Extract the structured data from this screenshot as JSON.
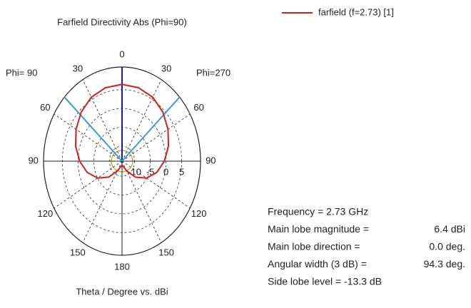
{
  "chart_data": {
    "type": "polar",
    "title": "Farfield Directivity Abs (Phi=90)",
    "x_label": "Theta / Degree vs. dBi",
    "left_label": "Phi= 90",
    "right_label": "Phi=270",
    "rlim": [
      -14,
      11
    ],
    "rticks": [
      -10,
      -5,
      0,
      5
    ],
    "theta_ticks": [
      0,
      30,
      60,
      90,
      120,
      150,
      180
    ],
    "series": [
      {
        "name": "farfield (f=2.73) [1]",
        "color": "#cc2222",
        "x": [
          -180,
          -165,
          -150,
          -135,
          -120,
          -105,
          -90,
          -75,
          -60,
          -45,
          -30,
          -15,
          0,
          15,
          30,
          45,
          60,
          75,
          90,
          105,
          120,
          135,
          150,
          165,
          180
        ],
        "values": [
          -13,
          -12.5,
          -11,
          -8,
          -5,
          -2.5,
          -0.5,
          1.3,
          2.9,
          4.4,
          5.6,
          6.2,
          6.4,
          6.2,
          5.6,
          4.4,
          2.9,
          1.3,
          -0.5,
          -2.5,
          -5,
          -8,
          -11,
          -12.5,
          -13
        ]
      }
    ],
    "main_lobe_direction": 0,
    "beam_edges": [
      -47.15,
      47.15
    ],
    "info": [
      {
        "label": "Frequency = 2.73 GHz"
      },
      {
        "label": "Main lobe magnitude =",
        "value": "6.4 dBi"
      },
      {
        "label": "Main lobe direction =",
        "value": "0.0 deg."
      },
      {
        "label": "Angular width (3 dB) =",
        "value": "94.3 deg."
      },
      {
        "label": "Side lobe level = -13.3 dB"
      }
    ]
  }
}
